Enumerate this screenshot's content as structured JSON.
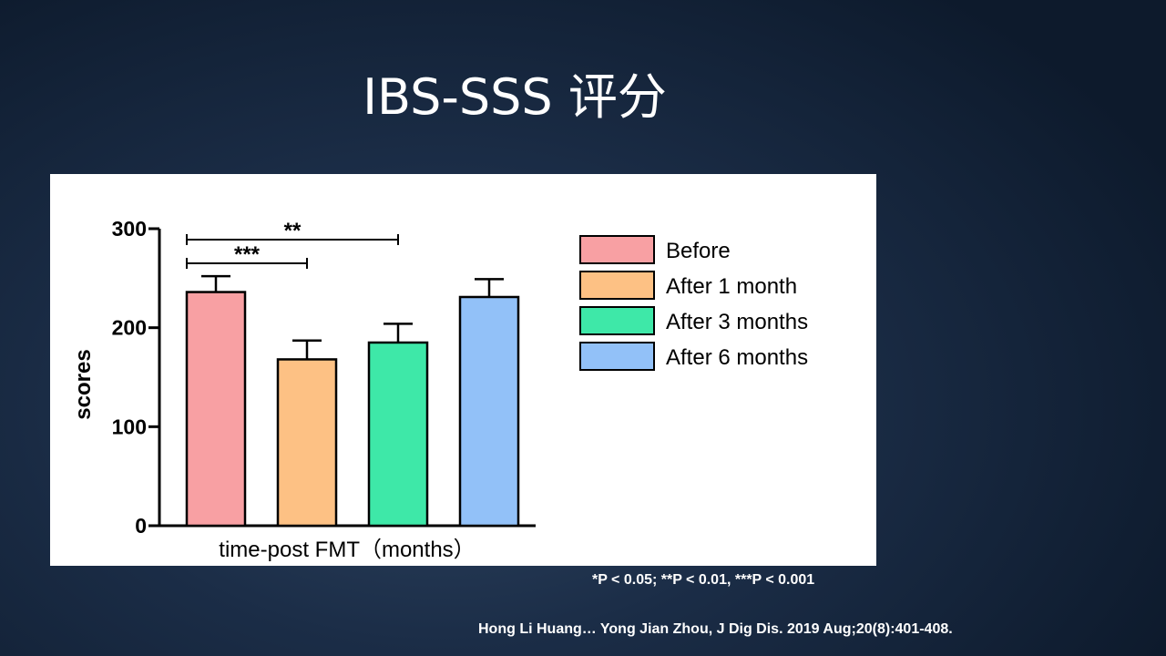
{
  "slide": {
    "title": "IBS-SSS  评分",
    "footnote": "*P < 0.05; **P < 0.01, ***P < 0.001",
    "citation": "Hong Li Huang… Yong Jian Zhou, J Dig Dis. 2019 Aug;20(8):401-408."
  },
  "chart_data": {
    "type": "bar",
    "title": "",
    "xlabel": "time-post FMT（months）",
    "ylabel": "scores",
    "ylim": [
      0,
      300
    ],
    "yticks": [
      "0",
      "100",
      "200",
      "300"
    ],
    "ytick_values": [
      0,
      100,
      200,
      300
    ],
    "categories": [
      "Before",
      "After 1 month",
      "After 3 months",
      "After 6 months"
    ],
    "values": [
      236,
      168,
      185,
      231
    ],
    "error": [
      16,
      19,
      19,
      18
    ],
    "colors": [
      "#f8a0a3",
      "#fdc184",
      "#3ee8a8",
      "#92c1f8"
    ],
    "legend_position": "right",
    "significance": [
      {
        "from": 0,
        "to": 1,
        "label": "***",
        "y": 265
      },
      {
        "from": 0,
        "to": 2,
        "label": "**",
        "y": 289
      }
    ],
    "grid": false
  }
}
